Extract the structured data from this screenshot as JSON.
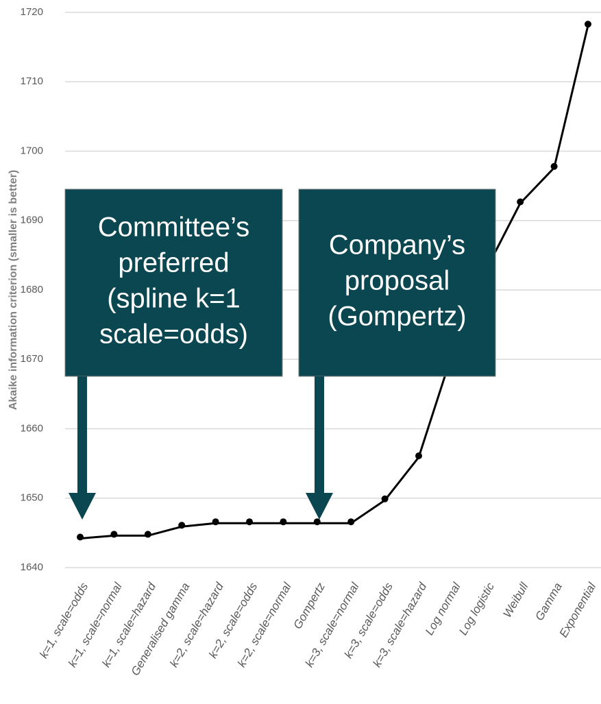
{
  "chart_data": {
    "type": "line",
    "ylabel": "Akaike information criterion  (smaller is better)",
    "categories": [
      "k=1, scale=odds",
      "k=1, scale=normal",
      "k=1, scale=hazard",
      "Generalised gamma",
      "k=2, scale=hazard",
      "k=2, scale=odds",
      "k=2, scale=normal",
      "Gompertz",
      "k=3, scale=normal",
      "k=3, scale=odds",
      "k=3, scale=hazard",
      "Log normal",
      "Log logistic",
      "Weibull",
      "Gamma",
      "Exponential"
    ],
    "values": [
      1644.2,
      1644.6,
      1644.6,
      1645.9,
      1646.4,
      1646.4,
      1646.4,
      1646.4,
      1646.4,
      1649.7,
      1655.9,
      1671,
      1683,
      1692.5,
      1697.6,
      1718.1
    ],
    "color": "#000000",
    "ylim": [
      1640,
      1720
    ],
    "yticks": [
      1640,
      1650,
      1660,
      1670,
      1680,
      1690,
      1700,
      1710,
      1720
    ],
    "grid": true,
    "annotations": [
      {
        "lines": [
          "Committee’s",
          "preferred",
          "(spline k=1",
          "scale=odds)"
        ]
      },
      {
        "lines": [
          "Company’s",
          "proposal",
          "(Gompertz)"
        ]
      }
    ]
  }
}
